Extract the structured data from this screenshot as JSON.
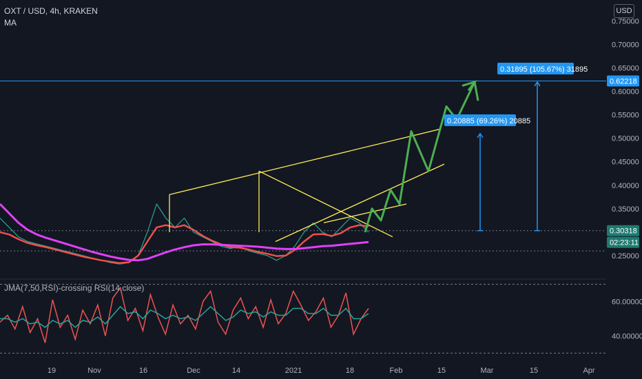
{
  "header": {
    "symbol": "OXT / USD, 4h, KRAKEN",
    "indicator": "MA",
    "rsi_legend": "JMA(7,50,RSI)-crossing RSI(14,close)",
    "currency_button": "USD"
  },
  "tags": {
    "target_price": "0.62218",
    "current_price": "0.30318",
    "countdown": "02:23:11",
    "measure_big": "0.31895 (105.67%) 31895",
    "measure_small": "0.20885 (69.26%) 20885"
  },
  "colors": {
    "background": "#131722",
    "ma_fast": "#f0504a",
    "ma_slow": "#e040fb",
    "projection": "#4caf50",
    "trendline": "#ffee58",
    "measure": "#2196f3"
  },
  "chart_data": [
    {
      "type": "line",
      "panel": "price",
      "y_ticks": [
        "0.75000",
        "0.70000",
        "0.65000",
        "0.60000",
        "0.55000",
        "0.50000",
        "0.45000",
        "0.40000",
        "0.35000",
        "0.25000"
      ],
      "ylim": [
        0.2,
        0.78
      ],
      "x_ticks": [
        "19",
        "Nov",
        "16",
        "Dec",
        "14",
        "2021",
        "18",
        "Feb",
        "15",
        "Mar",
        "15",
        "Apr"
      ],
      "series": [
        {
          "role": "price",
          "values": [
            0.33,
            0.31,
            0.29,
            0.28,
            0.275,
            0.27,
            0.265,
            0.26,
            0.255,
            0.25,
            0.245,
            0.24,
            0.235,
            0.232,
            0.235,
            0.25,
            0.3,
            0.36,
            0.33,
            0.31,
            0.33,
            0.3,
            0.29,
            0.28,
            0.27,
            0.265,
            0.27,
            0.26,
            0.255,
            0.25,
            0.24,
            0.25,
            0.27,
            0.3,
            0.32,
            0.3,
            0.29,
            0.31,
            0.33,
            0.32,
            0.3
          ]
        },
        {
          "role": "ma_fast",
          "values": [
            0.3,
            0.295,
            0.285,
            0.277,
            0.272,
            0.268,
            0.263,
            0.258,
            0.253,
            0.248,
            0.244,
            0.24,
            0.237,
            0.234,
            0.236,
            0.25,
            0.28,
            0.31,
            0.315,
            0.31,
            0.315,
            0.305,
            0.292,
            0.282,
            0.274,
            0.268,
            0.267,
            0.263,
            0.258,
            0.254,
            0.249,
            0.25,
            0.262,
            0.28,
            0.295,
            0.296,
            0.292,
            0.298,
            0.31,
            0.315,
            0.312
          ]
        },
        {
          "role": "ma_slow",
          "values": [
            0.36,
            0.34,
            0.32,
            0.305,
            0.295,
            0.288,
            0.282,
            0.276,
            0.27,
            0.264,
            0.258,
            0.253,
            0.248,
            0.244,
            0.241,
            0.24,
            0.243,
            0.25,
            0.257,
            0.263,
            0.268,
            0.272,
            0.274,
            0.274,
            0.273,
            0.272,
            0.271,
            0.27,
            0.269,
            0.267,
            0.265,
            0.264,
            0.264,
            0.266,
            0.268,
            0.27,
            0.271,
            0.273,
            0.275,
            0.277,
            0.279
          ]
        }
      ]
    },
    {
      "type": "line",
      "panel": "rsi",
      "y_ticks": [
        "60.00000",
        "40.00000"
      ],
      "ylim": [
        27,
        73
      ],
      "series": [
        {
          "role": "rsi",
          "values": [
            48,
            52,
            44,
            57,
            42,
            50,
            36,
            61,
            45,
            52,
            38,
            55,
            47,
            58,
            40,
            62,
            68,
            49,
            56,
            43,
            64,
            51,
            41,
            58,
            47,
            52,
            44,
            60,
            66,
            48,
            41,
            55,
            62,
            50,
            57,
            45,
            61,
            47,
            53,
            66,
            58,
            49,
            54,
            62,
            45,
            52,
            65,
            41,
            50,
            56
          ]
        },
        {
          "role": "jma",
          "values": [
            50,
            50,
            48,
            50,
            47,
            48,
            45,
            49,
            47,
            49,
            45,
            49,
            48,
            51,
            47,
            52,
            57,
            53,
            54,
            50,
            55,
            53,
            50,
            52,
            50,
            51,
            49,
            53,
            57,
            53,
            49,
            51,
            55,
            53,
            54,
            51,
            54,
            52,
            52,
            56,
            56,
            53,
            53,
            56,
            52,
            52,
            56,
            50,
            50,
            53
          ]
        }
      ]
    }
  ]
}
